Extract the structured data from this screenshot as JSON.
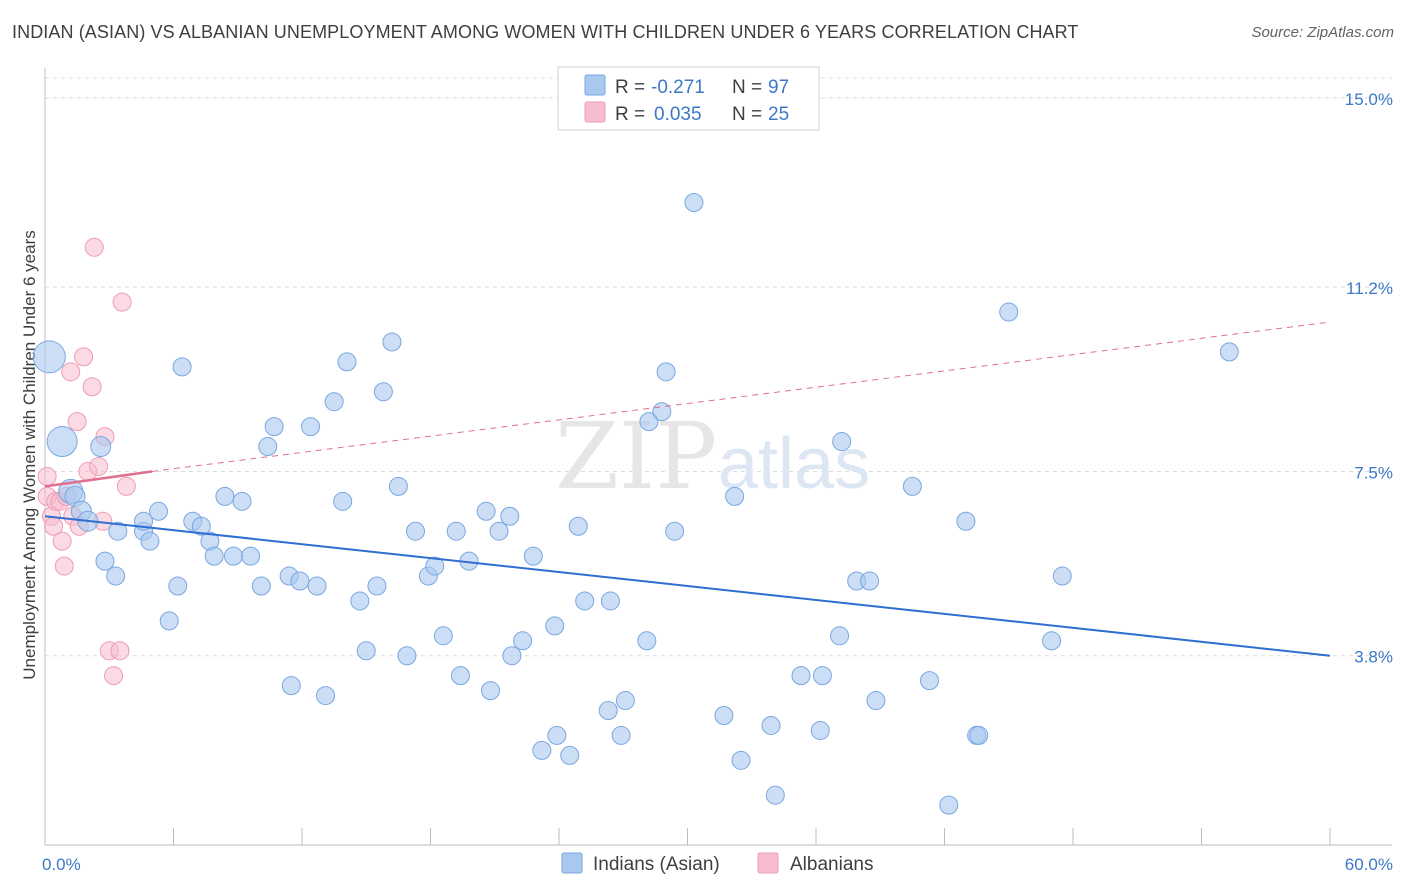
{
  "title": "INDIAN (ASIAN) VS ALBANIAN UNEMPLOYMENT AMONG WOMEN WITH CHILDREN UNDER 6 YEARS CORRELATION CHART",
  "source": "Source: ZipAtlas.com",
  "watermark": {
    "zip": "ZIP",
    "atlas": "atlas"
  },
  "legend": {
    "rows": [
      {
        "r_label": "R =",
        "r_value": "-0.271",
        "n_label": "N =",
        "n_value": "97"
      },
      {
        "r_label": "R =",
        "r_value": "0.035",
        "n_label": "N =",
        "n_value": "25"
      }
    ]
  },
  "bottom_legend": {
    "series1": "Indians (Asian)",
    "series2": "Albanians"
  },
  "chart_data": {
    "type": "scatter",
    "title": "INDIAN (ASIAN) VS ALBANIAN UNEMPLOYMENT AMONG WOMEN WITH CHILDREN UNDER 6 YEARS CORRELATION CHART",
    "xlabel": "",
    "ylabel": "Unemployment Among Women with Children Under 6 years",
    "xlim": [
      0,
      60
    ],
    "ylim": [
      0,
      15.6
    ],
    "x_tick_labels": [
      "0.0%",
      "60.0%"
    ],
    "y_ticks": [
      {
        "value": 15.0,
        "label": "15.0%"
      },
      {
        "value": 11.2,
        "label": "11.2%"
      },
      {
        "value": 7.5,
        "label": "7.5%"
      },
      {
        "value": 3.8,
        "label": "3.8%"
      }
    ],
    "colors": {
      "indians_fill": "#a9c8f0",
      "indians_stroke": "#7aa7e0",
      "indians_line": "#2e6fd1",
      "albanians_fill": "#f7bccd",
      "albanians_stroke": "#ee9db5",
      "albanians_line": "#e0708f",
      "grid": "#dadce0",
      "axis": "#bdbdbd"
    },
    "series": [
      {
        "name": "Indians (Asian)",
        "r": -0.271,
        "n": 97,
        "trend": {
          "x0": 0.0,
          "y0": 6.6,
          "x1": 60.0,
          "y1": 3.8
        },
        "points": [
          [
            0.2,
            9.8,
            16
          ],
          [
            0.8,
            8.1,
            15
          ],
          [
            1.2,
            7.1,
            12
          ],
          [
            1.4,
            7.0,
            10
          ],
          [
            1.7,
            6.7,
            10
          ],
          [
            2.0,
            6.5,
            10
          ],
          [
            2.6,
            8.0,
            10
          ],
          [
            2.8,
            5.7,
            9
          ],
          [
            3.4,
            6.3,
            9
          ],
          [
            3.3,
            5.4,
            9
          ],
          [
            4.6,
            6.3,
            9
          ],
          [
            4.6,
            6.5,
            9
          ],
          [
            4.9,
            6.1,
            9
          ],
          [
            5.3,
            6.7,
            9
          ],
          [
            5.8,
            4.5,
            9
          ],
          [
            6.2,
            5.2,
            9
          ],
          [
            6.4,
            9.6,
            9
          ],
          [
            6.9,
            6.5,
            9
          ],
          [
            7.3,
            6.4,
            9
          ],
          [
            7.7,
            6.1,
            9
          ],
          [
            7.9,
            5.8,
            9
          ],
          [
            8.4,
            7.0,
            9
          ],
          [
            8.8,
            5.8,
            9
          ],
          [
            9.2,
            6.9,
            9
          ],
          [
            9.6,
            5.8,
            9
          ],
          [
            10.1,
            5.2,
            9
          ],
          [
            10.4,
            8.0,
            9
          ],
          [
            10.7,
            8.4,
            9
          ],
          [
            11.4,
            5.4,
            9
          ],
          [
            11.5,
            3.2,
            9
          ],
          [
            11.9,
            5.3,
            9
          ],
          [
            12.4,
            8.4,
            9
          ],
          [
            12.7,
            5.2,
            9
          ],
          [
            13.1,
            3.0,
            9
          ],
          [
            13.5,
            8.9,
            9
          ],
          [
            13.9,
            6.9,
            9
          ],
          [
            14.1,
            9.7,
            9
          ],
          [
            14.7,
            4.9,
            9
          ],
          [
            15.0,
            3.9,
            9
          ],
          [
            15.5,
            5.2,
            9
          ],
          [
            15.8,
            9.1,
            9
          ],
          [
            16.2,
            10.1,
            9
          ],
          [
            16.5,
            7.2,
            9
          ],
          [
            16.9,
            3.8,
            9
          ],
          [
            17.3,
            6.3,
            9
          ],
          [
            17.9,
            5.4,
            9
          ],
          [
            18.2,
            5.6,
            9
          ],
          [
            18.6,
            4.2,
            9
          ],
          [
            19.2,
            6.3,
            9
          ],
          [
            19.4,
            3.4,
            9
          ],
          [
            19.8,
            5.7,
            9
          ],
          [
            20.6,
            6.7,
            9
          ],
          [
            20.8,
            3.1,
            9
          ],
          [
            21.2,
            6.3,
            9
          ],
          [
            21.7,
            6.6,
            9
          ],
          [
            21.8,
            3.8,
            9
          ],
          [
            22.3,
            4.1,
            9
          ],
          [
            22.8,
            5.8,
            9
          ],
          [
            23.2,
            1.9,
            9
          ],
          [
            23.8,
            4.4,
            9
          ],
          [
            23.9,
            2.2,
            9
          ],
          [
            24.5,
            1.8,
            9
          ],
          [
            24.9,
            6.4,
            9
          ],
          [
            25.2,
            4.9,
            9
          ],
          [
            26.3,
            2.7,
            9
          ],
          [
            26.4,
            4.9,
            9
          ],
          [
            26.9,
            2.2,
            9
          ],
          [
            27.1,
            2.9,
            9
          ],
          [
            28.1,
            4.1,
            9
          ],
          [
            28.2,
            8.5,
            9
          ],
          [
            28.8,
            8.7,
            9
          ],
          [
            29.0,
            9.5,
            9
          ],
          [
            29.4,
            6.3,
            9
          ],
          [
            30.3,
            12.9,
            9
          ],
          [
            31.7,
            2.6,
            9
          ],
          [
            32.2,
            7.0,
            9
          ],
          [
            32.5,
            1.7,
            9
          ],
          [
            33.9,
            2.4,
            9
          ],
          [
            34.1,
            1.0,
            9
          ],
          [
            35.3,
            3.4,
            9
          ],
          [
            36.2,
            2.3,
            9
          ],
          [
            36.3,
            3.4,
            9
          ],
          [
            37.1,
            4.2,
            9
          ],
          [
            37.2,
            8.1,
            9
          ],
          [
            37.9,
            5.3,
            9
          ],
          [
            38.5,
            5.3,
            9
          ],
          [
            38.8,
            2.9,
            9
          ],
          [
            40.5,
            7.2,
            9
          ],
          [
            41.3,
            3.3,
            9
          ],
          [
            42.2,
            0.8,
            9
          ],
          [
            43.0,
            6.5,
            9
          ],
          [
            43.5,
            2.2,
            9
          ],
          [
            43.6,
            2.2,
            9
          ],
          [
            45.0,
            10.7,
            9
          ],
          [
            47.0,
            4.1,
            9
          ],
          [
            47.5,
            5.4,
            9
          ],
          [
            55.3,
            9.9,
            9
          ]
        ]
      },
      {
        "name": "Albanians",
        "r": 0.035,
        "n": 25,
        "trend_solid": {
          "x0": 0.0,
          "y0": 7.2,
          "x1": 5.0,
          "y1": 7.5
        },
        "trend_dashed": {
          "x0": 5.0,
          "y0": 7.5,
          "x1": 60.0,
          "y1": 10.5
        },
        "points": [
          [
            0.1,
            7.4,
            9
          ],
          [
            0.1,
            7.0,
            9
          ],
          [
            0.3,
            6.6,
            9
          ],
          [
            0.4,
            6.4,
            9
          ],
          [
            0.5,
            6.9,
            9
          ],
          [
            0.7,
            6.9,
            9
          ],
          [
            0.8,
            6.1,
            9
          ],
          [
            0.9,
            5.6,
            9
          ],
          [
            1.0,
            7.0,
            9
          ],
          [
            1.2,
            9.5,
            9
          ],
          [
            1.3,
            6.6,
            9
          ],
          [
            1.5,
            8.5,
            9
          ],
          [
            1.6,
            6.4,
            9
          ],
          [
            1.8,
            9.8,
            9
          ],
          [
            2.0,
            7.5,
            9
          ],
          [
            2.2,
            9.2,
            9
          ],
          [
            2.3,
            12.0,
            9
          ],
          [
            2.5,
            7.6,
            9
          ],
          [
            2.7,
            6.5,
            9
          ],
          [
            2.8,
            8.2,
            9
          ],
          [
            3.0,
            3.9,
            9
          ],
          [
            3.2,
            3.4,
            9
          ],
          [
            3.5,
            3.9,
            9
          ],
          [
            3.6,
            10.9,
            9
          ],
          [
            3.8,
            7.2,
            9
          ]
        ]
      }
    ]
  }
}
